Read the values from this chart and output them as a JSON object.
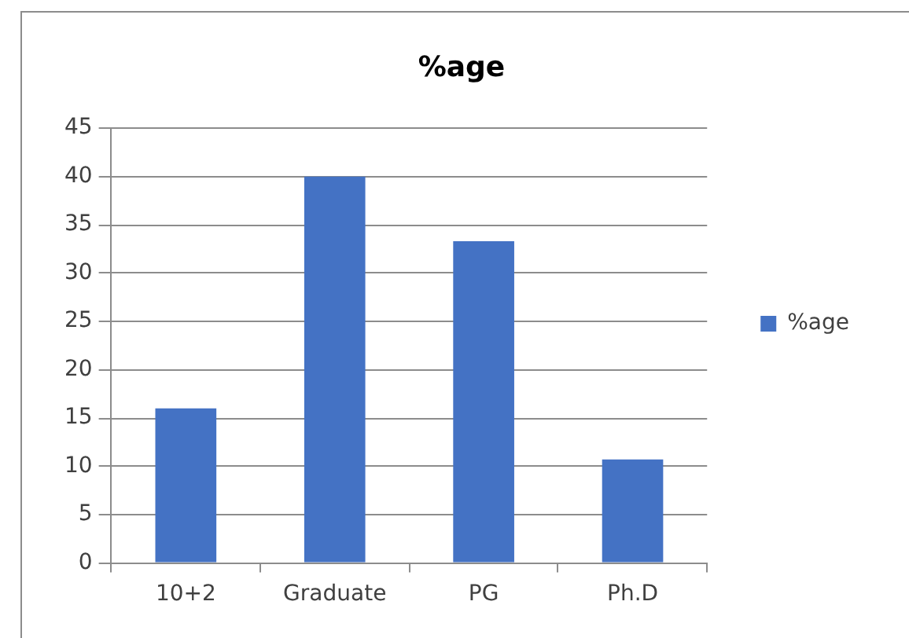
{
  "chart_data": {
    "type": "bar",
    "title": "%age",
    "categories": [
      "10+2",
      "Graduate",
      "PG",
      "Ph.D"
    ],
    "series": [
      {
        "name": "%age",
        "color": "#4472c4",
        "values": [
          16,
          40,
          33.3,
          10.7
        ]
      }
    ],
    "ylim": [
      0,
      45
    ],
    "yticks": [
      0,
      5,
      10,
      15,
      20,
      25,
      30,
      35,
      40,
      45
    ],
    "grid": "y",
    "legend": "right"
  }
}
